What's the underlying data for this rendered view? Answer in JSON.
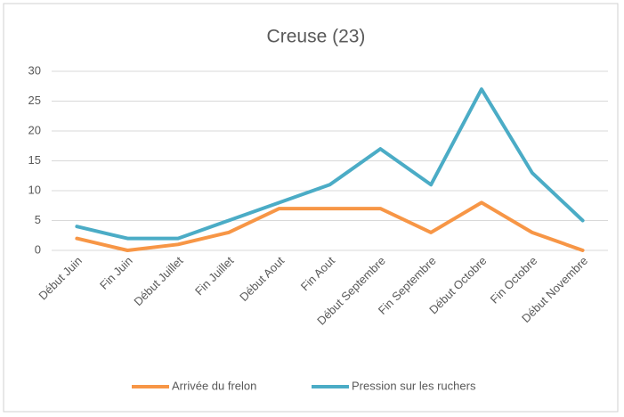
{
  "chart_data": {
    "type": "line",
    "title": "Creuse (23)",
    "categories": [
      "Début Juin",
      "Fin Juin",
      "Début Juillet",
      "Fin Juillet",
      "Début Aout",
      "Fin Aout",
      "Début Septembre",
      "Fin Septembre",
      "Début Octobre",
      "Fin Octobre",
      "Début Novembre"
    ],
    "series": [
      {
        "name": "Arrivée du frelon",
        "color": "#f79646",
        "values": [
          2,
          0,
          1,
          3,
          7,
          7,
          7,
          3,
          8,
          3,
          0
        ]
      },
      {
        "name": "Pression sur les ruchers",
        "color": "#4bacc6",
        "values": [
          4,
          2,
          2,
          5,
          8,
          11,
          17,
          11,
          27,
          13,
          5
        ]
      }
    ],
    "ylim": [
      0,
      30
    ],
    "yticks": [
      0,
      5,
      10,
      15,
      20,
      25,
      30
    ],
    "grid": true,
    "legend": "bottom"
  }
}
